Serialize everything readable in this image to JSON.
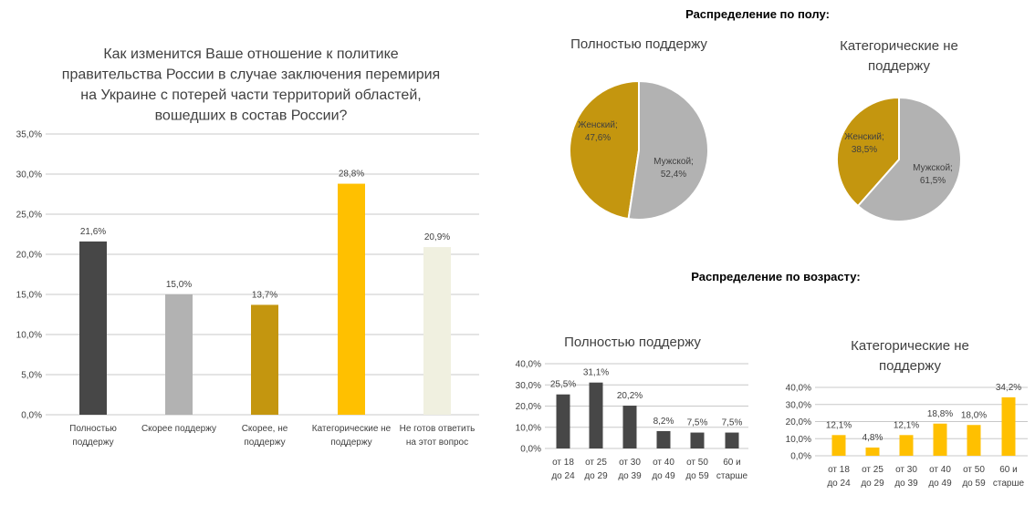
{
  "chart_data": [
    {
      "type": "bar",
      "title": "Как изменится Ваше отношение к политике правительства России в случае заключения перемирия на Украине с потерей части территорий областей, вошедших в состав России?",
      "title_lines": [
        "Как изменится Ваше отношение к политике",
        "правительства России в случае заключения перемирия",
        "на Украине с потерей части территорий областей,",
        "вошедших в состав России?"
      ],
      "categories": [
        [
          "Полностью",
          "поддержу"
        ],
        [
          "Скорее поддержу"
        ],
        [
          "Скорее, не",
          "поддержу"
        ],
        [
          "Категорические не",
          "поддержу"
        ],
        [
          "Не готов ответить",
          "на этот вопрос"
        ]
      ],
      "values": [
        21.6,
        15.0,
        13.7,
        28.8,
        20.9
      ],
      "labels": [
        "21,6%",
        "15,0%",
        "13,7%",
        "28,8%",
        "20,9%"
      ],
      "colors": [
        "#474747",
        "#b2b2b2",
        "#c4960f",
        "#ffc000",
        "#f0f0e0"
      ],
      "ylim": [
        0,
        35
      ],
      "yticks": [
        "0,0%",
        "5,0%",
        "10,0%",
        "15,0%",
        "20,0%",
        "25,0%",
        "30,0%",
        "35,0%"
      ],
      "grid": true
    },
    {
      "type": "pie",
      "section_title": "Распределение по полу:",
      "title": "Полностью поддержу",
      "slices": [
        {
          "name": "Женский",
          "value": 47.6,
          "label": "47,6%",
          "color": "#c4960f"
        },
        {
          "name": "Мужской",
          "value": 52.4,
          "label": "52,4%",
          "color": "#b2b2b2"
        }
      ]
    },
    {
      "type": "pie",
      "title": "Категорические не поддержу",
      "title_lines": [
        "Категорические не",
        "поддержу"
      ],
      "slices": [
        {
          "name": "Женский",
          "value": 38.5,
          "label": "38,5%",
          "color": "#c4960f"
        },
        {
          "name": "Мужской",
          "value": 61.5,
          "label": "61,5%",
          "color": "#b2b2b2"
        }
      ]
    },
    {
      "type": "bar",
      "section_title": "Распределение по возрасту:",
      "title": "Полностью поддержу",
      "categories": [
        [
          "от 18",
          "до 24"
        ],
        [
          "от 25",
          "до 29"
        ],
        [
          "от 30",
          "до 39"
        ],
        [
          "от 40",
          "до 49"
        ],
        [
          "от 50",
          "до 59"
        ],
        [
          "60  и",
          "старше"
        ]
      ],
      "values": [
        25.5,
        31.1,
        20.2,
        8.2,
        7.5,
        7.5
      ],
      "labels": [
        "25,5%",
        "31,1%",
        "20,2%",
        "8,2%",
        "7,5%",
        "7,5%"
      ],
      "color": "#474747",
      "ylim": [
        0,
        40
      ],
      "yticks": [
        "0,0%",
        "10,0%",
        "20,0%",
        "30,0%",
        "40,0%"
      ]
    },
    {
      "type": "bar",
      "title": "Категорические не поддержу",
      "title_lines": [
        "Категорические не",
        "поддержу"
      ],
      "categories": [
        [
          "от 18",
          "до 24"
        ],
        [
          "от 25",
          "до 29"
        ],
        [
          "от 30",
          "до 39"
        ],
        [
          "от 40",
          "до 49"
        ],
        [
          "от 50",
          "до 59"
        ],
        [
          "60  и",
          "старше"
        ]
      ],
      "values": [
        12.1,
        4.8,
        12.1,
        18.8,
        18.0,
        34.2
      ],
      "labels": [
        "12,1%",
        "4,8%",
        "12,1%",
        "18,8%",
        "18,0%",
        "34,2%"
      ],
      "color": "#ffc000",
      "ylim": [
        0,
        40
      ],
      "yticks": [
        "0,0%",
        "10,0%",
        "20,0%",
        "30,0%",
        "40,0%"
      ]
    }
  ]
}
